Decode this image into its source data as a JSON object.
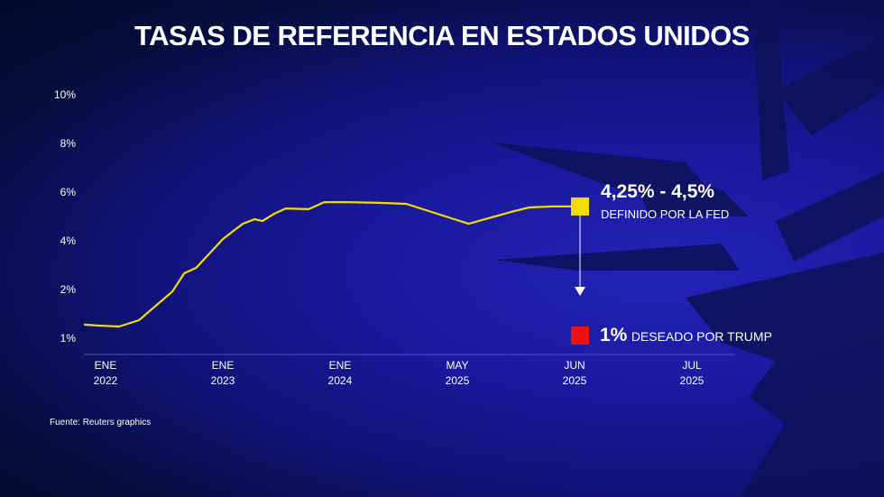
{
  "title": "TASAS DE REFERENCIA EN ESTADOS UNIDOS",
  "source": "Fuente: Reuters graphics",
  "colors": {
    "line": "#f5dc00",
    "fed_marker": "#f5dc00",
    "trump_marker": "#ee1111",
    "text": "#ffffff"
  },
  "chart_data": {
    "type": "line",
    "title": "TASAS DE REFERENCIA EN ESTADOS UNIDOS",
    "y_ticks": [
      1,
      2,
      4,
      6,
      8,
      10
    ],
    "y_tick_labels": [
      "1%",
      "2%",
      "4%",
      "6%",
      "8%",
      "10%"
    ],
    "x_ticks": [
      {
        "date": "2022-01-01",
        "month": "ENE",
        "year": "2022"
      },
      {
        "date": "2023-01-01",
        "month": "ENE",
        "year": "2023"
      },
      {
        "date": "2024-01-01",
        "month": "ENE",
        "year": "2024"
      },
      {
        "date": "2025-05-01",
        "month": "MAY",
        "year": "2025"
      },
      {
        "date": "2025-06-01",
        "month": "JUN",
        "year": "2025"
      },
      {
        "date": "2025-07-01",
        "month": "JUL",
        "year": "2025"
      }
    ],
    "grid": false,
    "series": [
      {
        "points": [
          [
            "2021-10-26",
            1.28
          ],
          [
            "2021-12-12",
            1.26
          ],
          [
            "2022-02-12",
            1.24
          ],
          [
            "2022-04-15",
            1.37
          ],
          [
            "2022-07-28",
            1.96
          ],
          [
            "2022-09-03",
            2.67
          ],
          [
            "2022-10-10",
            2.89
          ],
          [
            "2023-01-01",
            4.07
          ],
          [
            "2023-03-04",
            4.7
          ],
          [
            "2023-04-10",
            4.89
          ],
          [
            "2023-05-04",
            4.81
          ],
          [
            "2023-06-10",
            5.11
          ],
          [
            "2023-07-16",
            5.33
          ],
          [
            "2023-09-25",
            5.3
          ],
          [
            "2023-11-13",
            5.59
          ],
          [
            "2024-02-01",
            5.59
          ],
          [
            "2024-06-10",
            5.56
          ],
          [
            "2024-10-01",
            5.52
          ],
          [
            "2025-05-04",
            4.7
          ],
          [
            "2025-05-16",
            5.22
          ],
          [
            "2025-05-20",
            5.37
          ],
          [
            "2025-05-26",
            5.41
          ],
          [
            "2025-05-30",
            5.41
          ],
          [
            "2025-06-01",
            5.41
          ]
        ]
      }
    ],
    "annotations": [
      {
        "id": "fed",
        "date": "2025-06-01",
        "value": 5.41,
        "big": "4,25% - 4,5%",
        "small": "DEFINIDO POR LA FED"
      },
      {
        "id": "trump",
        "date": "2025-06-01",
        "value": 1,
        "big": "1%",
        "small": "DESEADO POR TRUMP"
      }
    ]
  }
}
